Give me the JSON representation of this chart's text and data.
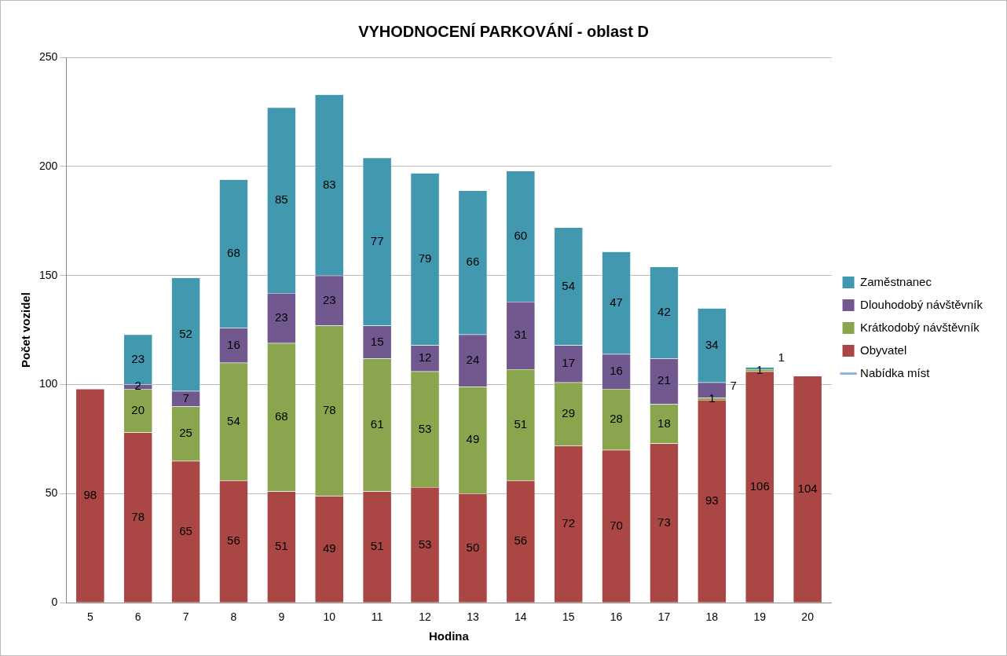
{
  "chart_data": {
    "type": "bar",
    "title": "VYHODNOCENÍ PARKOVÁNÍ - oblast D",
    "xlabel": "Hodina",
    "ylabel": "Počet vozidel",
    "categories": [
      "5",
      "6",
      "7",
      "8",
      "9",
      "10",
      "11",
      "12",
      "13",
      "14",
      "15",
      "16",
      "17",
      "18",
      "19",
      "20"
    ],
    "stacked": true,
    "data_labels": true,
    "grid": "y",
    "legend": "right",
    "ylim": [
      0,
      250
    ],
    "yticks": [
      0,
      50,
      100,
      150,
      200,
      250
    ],
    "series": [
      {
        "name": "Obyvatel",
        "color": "#aa4643",
        "values": [
          98,
          78,
          65,
          56,
          51,
          49,
          51,
          53,
          50,
          56,
          72,
          70,
          73,
          93,
          106,
          104
        ]
      },
      {
        "name": "Krátkodobý návštěvník",
        "color": "#89a54e",
        "values": [
          null,
          20,
          25,
          54,
          68,
          78,
          61,
          53,
          49,
          51,
          29,
          28,
          18,
          1,
          1,
          null
        ]
      },
      {
        "name": "Dlouhodobý návštěvník",
        "color": "#71588f",
        "values": [
          null,
          2,
          7,
          16,
          23,
          23,
          15,
          12,
          24,
          31,
          17,
          16,
          21,
          7,
          null,
          null
        ]
      },
      {
        "name": "Zaměstnanec",
        "color": "#4198af",
        "values": [
          null,
          23,
          52,
          68,
          85,
          83,
          77,
          79,
          66,
          60,
          54,
          47,
          42,
          34,
          1,
          null
        ]
      },
      {
        "name": "Nabídka míst",
        "type": "line",
        "color": "#8eb4e3",
        "values": [
          null,
          null,
          null,
          null,
          null,
          null,
          null,
          null,
          null,
          null,
          null,
          null,
          null,
          null,
          null,
          null
        ]
      }
    ]
  }
}
